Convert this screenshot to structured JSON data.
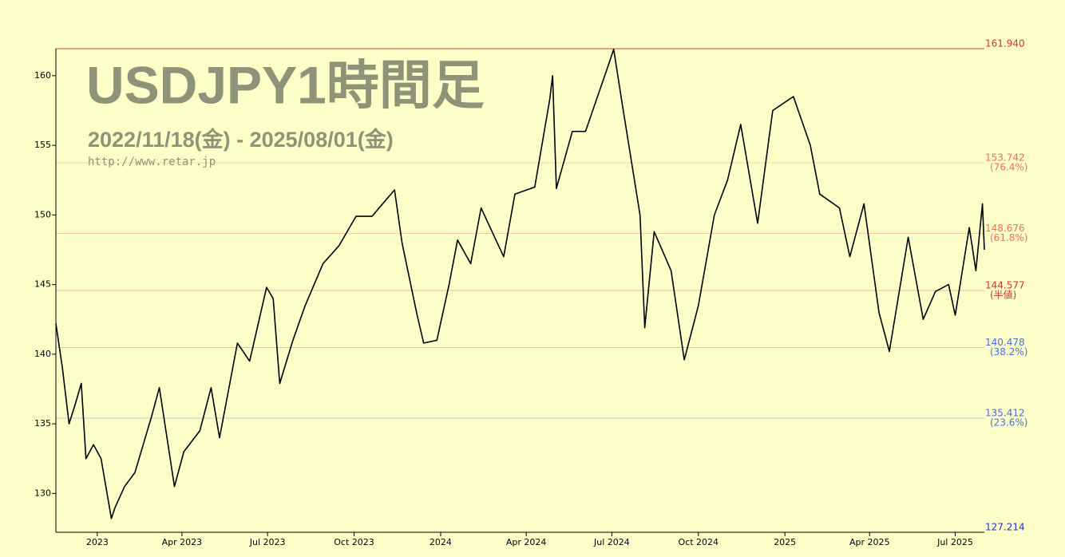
{
  "chart_data": {
    "type": "line",
    "title": "USDJPY1時間足",
    "subtitle": "2022/11/18(金) - 2025/08/01(金)",
    "url": "http://www.retar.jp",
    "color": "#000000",
    "x": [
      "2022-11-18",
      "2022-11-25",
      "2022-12-02",
      "2022-12-09",
      "2022-12-15",
      "2022-12-20",
      "2022-12-28",
      "2023-01-05",
      "2023-01-16",
      "2023-01-20",
      "2023-01-30",
      "2023-02-10",
      "2023-02-28",
      "2023-03-08",
      "2023-03-24",
      "2023-04-03",
      "2023-04-20",
      "2023-05-02",
      "2023-05-11",
      "2023-05-30",
      "2023-06-12",
      "2023-06-30",
      "2023-07-07",
      "2023-07-14",
      "2023-07-28",
      "2023-08-10",
      "2023-08-29",
      "2023-09-15",
      "2023-10-03",
      "2023-10-20",
      "2023-11-13",
      "2023-11-21",
      "2023-12-07",
      "2023-12-14",
      "2023-12-28",
      "2024-01-10",
      "2024-01-19",
      "2024-02-02",
      "2024-02-13",
      "2024-03-08",
      "2024-03-20",
      "2024-04-10",
      "2024-04-26",
      "2024-04-29",
      "2024-05-03",
      "2024-05-20",
      "2024-06-03",
      "2024-06-26",
      "2024-07-03",
      "2024-07-12",
      "2024-07-31",
      "2024-08-05",
      "2024-08-15",
      "2024-09-02",
      "2024-09-16",
      "2024-10-01",
      "2024-10-18",
      "2024-11-01",
      "2024-11-15",
      "2024-12-03",
      "2024-12-19",
      "2025-01-10",
      "2025-01-28",
      "2025-02-07",
      "2025-02-28",
      "2025-03-11",
      "2025-03-26",
      "2025-04-11",
      "2025-04-22",
      "2025-05-12",
      "2025-05-28",
      "2025-06-10",
      "2025-06-24",
      "2025-07-01",
      "2025-07-16",
      "2025-07-23",
      "2025-07-30",
      "2025-08-01"
    ],
    "values": [
      142.2,
      139,
      135,
      136.5,
      137.9,
      132.5,
      133.5,
      132.5,
      128.2,
      129,
      130.5,
      131.5,
      135.6,
      137.6,
      130.5,
      133,
      134.5,
      137.6,
      134,
      140.8,
      139.5,
      144.8,
      144,
      137.9,
      141,
      143.5,
      146.5,
      147.8,
      149.9,
      149.9,
      151.8,
      148,
      142.8,
      140.8,
      141,
      145,
      148.2,
      146.5,
      150.5,
      147,
      151.5,
      152,
      158.3,
      160,
      151.9,
      156,
      156,
      160.5,
      161.9,
      158,
      150,
      141.9,
      148.8,
      146,
      139.6,
      143.5,
      150,
      152.5,
      156.5,
      149.4,
      157.5,
      158.5,
      155,
      151.5,
      150.5,
      147,
      150.8,
      143,
      140.2,
      148.4,
      142.5,
      144.5,
      145,
      142.8,
      149.1,
      146,
      150.8,
      147.5
    ],
    "xlim": [
      "2022-11-18",
      "2025-08-01"
    ],
    "xticks": [
      {
        "value": "2023-01",
        "label": "2023"
      },
      {
        "value": "2023-04",
        "label": "Apr 2023"
      },
      {
        "value": "2023-07",
        "label": "Jul 2023"
      },
      {
        "value": "2023-10",
        "label": "Oct 2023"
      },
      {
        "value": "2024-01",
        "label": "2024"
      },
      {
        "value": "2024-04",
        "label": "Apr 2024"
      },
      {
        "value": "2024-07",
        "label": "Jul 2024"
      },
      {
        "value": "2024-10",
        "label": "Oct 2024"
      },
      {
        "value": "2025-01",
        "label": "2025"
      },
      {
        "value": "2025-04",
        "label": "Apr 2025"
      },
      {
        "value": "2025-07",
        "label": "Jul 2025"
      }
    ],
    "ylim": [
      127.214,
      161.94
    ],
    "yticks": [
      130,
      135,
      140,
      145,
      150,
      155,
      160
    ],
    "levels": [
      {
        "value": 161.94,
        "label": "161.940",
        "color": "#d83030"
      },
      {
        "value": 153.742,
        "label": "153.742",
        "note": "(76.4%)",
        "color": "#e8735a"
      },
      {
        "value": 148.676,
        "label": "148.676",
        "note": "(61.8%)",
        "color": "#e8735a"
      },
      {
        "value": 144.577,
        "label": "144.577",
        "note": "(半値)",
        "color": "#c23a2a"
      },
      {
        "value": 140.478,
        "label": "140.478",
        "note": "(38.2%)",
        "color": "#4a6fd8"
      },
      {
        "value": 135.412,
        "label": "135.412",
        "note": "(23.6%)",
        "color": "#4a6fd8"
      },
      {
        "value": 127.214,
        "label": "127.214",
        "color": "#2233cc"
      }
    ]
  }
}
